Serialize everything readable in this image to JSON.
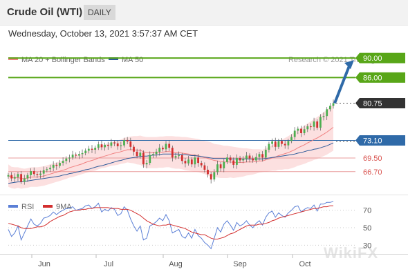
{
  "header": {
    "title": "Crude Oil (WTI)",
    "timeframe": "DAILY"
  },
  "datetime": "Wednesday, October 13, 2021 3:57:37 AM CET",
  "watermark": "WikiFX",
  "colors": {
    "bull": "#4caf50",
    "bear": "#d32f2f",
    "ma20": "#f08080",
    "ma50": "#2e5b9a",
    "bands": "#fbdada",
    "resistance": "#58a618",
    "target": "#2f6aa8",
    "support": "#e99b9b",
    "pivot": "#2f6aa8",
    "last": "#333333",
    "rsi": "#5b7fd6",
    "rsi_ma": "#d32f2f"
  },
  "chart_data": [
    {
      "type": "candlestick",
      "legend": [
        {
          "label": "MA 20 + Bollinger Bands",
          "color": "#f08080"
        },
        {
          "label": "MA 50",
          "color": "#2e5b9a"
        }
      ],
      "credit": "Research © 2021 Trading Central",
      "x_labels": [
        "Jun",
        "Jul",
        "Aug",
        "Sep",
        "Oct"
      ],
      "ylim": [
        62,
        92
      ],
      "levels": [
        {
          "value": 90.0,
          "label": "90.00",
          "role": "resistance"
        },
        {
          "value": 86.0,
          "label": "86.00",
          "role": "resistance"
        },
        {
          "value": 80.75,
          "label": "80.75",
          "role": "last"
        },
        {
          "value": 73.1,
          "label": "73.10",
          "role": "pivot"
        },
        {
          "value": 69.5,
          "label": "69.50",
          "role": "support"
        },
        {
          "value": 66.7,
          "label": "66.70",
          "role": "support"
        }
      ],
      "arrow": {
        "from": 80.75,
        "to": 90.0
      },
      "closes": [
        66.0,
        65.3,
        65.6,
        66.2,
        64.6,
        65.3,
        66.0,
        66.8,
        66.2,
        66.0,
        66.3,
        67.0,
        67.2,
        67.5,
        68.1,
        67.9,
        68.5,
        68.9,
        69.4,
        69.6,
        70.2,
        70.0,
        70.3,
        70.5,
        71.0,
        71.4,
        71.2,
        71.6,
        72.3,
        71.7,
        72.2,
        72.0,
        72.7,
        72.5,
        71.9,
        72.1,
        73.2,
        72.9,
        71.8,
        70.8,
        69.9,
        70.6,
        68.2,
        68.5,
        70.1,
        70.3,
        70.8,
        71.6,
        71.3,
        72.4,
        71.6,
        69.6,
        69.9,
        70.1,
        68.9,
        68.4,
        69.2,
        68.2,
        69.6,
        68.5,
        68.0,
        67.1,
        66.2,
        65.1,
        66.6,
        68.2,
        67.4,
        68.7,
        69.6,
        69.0,
        68.1,
        69.5,
        69.0,
        69.3,
        70.0,
        69.4,
        69.0,
        69.7,
        70.3,
        69.6,
        71.2,
        72.4,
        72.9,
        71.8,
        73.0,
        72.4,
        72.1,
        73.0,
        73.8,
        75.1,
        75.5,
        74.6,
        75.4,
        76.0,
        75.9,
        77.0,
        75.7,
        77.9,
        78.1,
        79.5,
        80.2,
        80.75
      ],
      "ma20": [
        65.9,
        65.5,
        65.4,
        65.5,
        65.3,
        65.3,
        65.4,
        65.6,
        65.6,
        65.6,
        65.7,
        65.8,
        66.0,
        66.2,
        66.4,
        66.6,
        66.8,
        67.0,
        67.2,
        67.5,
        67.7,
        67.9,
        68.1,
        68.3,
        68.6,
        68.8,
        69.0,
        69.2,
        69.5,
        69.7,
        69.9,
        70.1,
        70.3,
        70.5,
        70.6,
        70.8,
        71.0,
        71.2,
        71.2,
        71.2,
        71.1,
        71.1,
        70.8,
        70.6,
        70.6,
        70.6,
        70.6,
        70.7,
        70.7,
        70.8,
        70.8,
        70.7,
        70.6,
        70.6,
        70.5,
        70.4,
        70.3,
        70.2,
        70.1,
        70.0,
        69.8,
        69.6,
        69.4,
        69.2,
        69.0,
        68.9,
        68.8,
        68.7,
        68.7,
        68.7,
        68.6,
        68.6,
        68.6,
        68.6,
        68.7,
        68.7,
        68.7,
        68.8,
        68.9,
        68.9,
        69.1,
        69.3,
        69.5,
        69.7,
        70.0,
        70.2,
        70.4,
        70.6,
        70.9,
        71.2,
        71.6,
        71.9,
        72.2,
        72.6,
        72.9,
        73.3,
        73.6,
        74.0,
        74.4,
        74.8,
        75.3,
        75.8
      ],
      "ma50": [
        64.3,
        64.4,
        64.5,
        64.6,
        64.6,
        64.7,
        64.8,
        64.9,
        65.0,
        65.1,
        65.2,
        65.3,
        65.4,
        65.5,
        65.6,
        65.7,
        65.8,
        66.0,
        66.1,
        66.3,
        66.4,
        66.6,
        66.7,
        66.9,
        67.1,
        67.2,
        67.4,
        67.6,
        67.8,
        67.9,
        68.1,
        68.3,
        68.5,
        68.7,
        68.9,
        69.0,
        69.2,
        69.4,
        69.5,
        69.6,
        69.7,
        69.8,
        69.9,
        69.9,
        70.0,
        70.1,
        70.1,
        70.2,
        70.3,
        70.3,
        70.3,
        70.3,
        70.3,
        70.3,
        70.2,
        70.2,
        70.1,
        70.0,
        70.0,
        69.9,
        69.8,
        69.7,
        69.6,
        69.5,
        69.4,
        69.4,
        69.4,
        69.4,
        69.4,
        69.3,
        69.3,
        69.3,
        69.3,
        69.3,
        69.3,
        69.3,
        69.3,
        69.3,
        69.3,
        69.3,
        69.4,
        69.5,
        69.6,
        69.7,
        69.8,
        69.9,
        70.0,
        70.1,
        70.2,
        70.3,
        70.5,
        70.6,
        70.8,
        71.0,
        71.1,
        71.3,
        71.4,
        71.6,
        71.8,
        72.0,
        72.3,
        72.6
      ],
      "band_halfwidth": [
        2.3,
        2.2,
        2.2,
        2.1,
        2.1,
        2.0,
        2.0,
        2.0,
        2.0,
        2.0,
        2.0,
        2.0,
        2.0,
        2.0,
        2.0,
        2.0,
        2.0,
        2.0,
        2.0,
        2.0,
        2.1,
        2.1,
        2.1,
        2.1,
        2.2,
        2.2,
        2.2,
        2.3,
        2.3,
        2.3,
        2.4,
        2.4,
        2.4,
        2.5,
        2.5,
        2.5,
        2.6,
        2.6,
        2.7,
        2.8,
        2.9,
        3.0,
        3.1,
        3.2,
        3.2,
        3.2,
        3.2,
        3.2,
        3.2,
        3.2,
        3.2,
        3.3,
        3.3,
        3.3,
        3.3,
        3.4,
        3.4,
        3.4,
        3.4,
        3.4,
        3.4,
        3.4,
        3.5,
        3.5,
        3.4,
        3.4,
        3.4,
        3.3,
        3.3,
        3.2,
        3.2,
        3.1,
        3.0,
        2.9,
        2.8,
        2.7,
        2.6,
        2.5,
        2.4,
        2.3,
        2.4,
        2.5,
        2.6,
        2.8,
        2.9,
        3.1,
        3.2,
        3.4,
        3.5,
        3.6,
        3.7,
        3.8,
        3.9,
        4.0,
        4.1,
        4.2,
        4.3,
        4.4,
        4.5,
        4.6,
        4.7,
        4.8
      ]
    },
    {
      "type": "line",
      "legend": [
        {
          "label": "RSI",
          "color": "#5b7fd6"
        },
        {
          "label": "9MA",
          "color": "#d32f2f"
        }
      ],
      "y_ticks": [
        70,
        50,
        30
      ],
      "ylim": [
        20,
        80
      ],
      "rsi": [
        48,
        40,
        44,
        52,
        36,
        44,
        52,
        60,
        54,
        52,
        55,
        61,
        62,
        64,
        68,
        65,
        68,
        70,
        72,
        72,
        74,
        70,
        71,
        72,
        75,
        76,
        72,
        74,
        78,
        68,
        71,
        69,
        73,
        71,
        64,
        66,
        74,
        70,
        60,
        52,
        46,
        52,
        36,
        38,
        52,
        54,
        57,
        61,
        58,
        65,
        58,
        44,
        46,
        48,
        40,
        38,
        44,
        38,
        48,
        41,
        38,
        33,
        30,
        26,
        38,
        50,
        45,
        54,
        58,
        53,
        47,
        56,
        52,
        54,
        58,
        53,
        50,
        55,
        58,
        53,
        62,
        67,
        69,
        62,
        67,
        64,
        62,
        67,
        70,
        74,
        75,
        68,
        71,
        73,
        72,
        76,
        69,
        77,
        77,
        79,
        79,
        80
      ],
      "ma9": [
        55,
        54,
        53,
        52,
        50,
        49,
        49,
        49,
        50,
        51,
        51,
        52,
        54,
        57,
        59,
        61,
        63,
        64,
        66,
        68,
        69,
        70,
        70,
        71,
        71,
        72,
        72,
        73,
        73,
        73,
        73,
        73,
        72,
        72,
        72,
        71,
        71,
        71,
        70,
        68,
        66,
        64,
        61,
        58,
        56,
        54,
        53,
        52,
        53,
        53,
        54,
        53,
        52,
        51,
        50,
        49,
        47,
        45,
        44,
        43,
        42,
        42,
        40,
        38,
        37,
        37,
        38,
        39,
        41,
        43,
        44,
        46,
        48,
        50,
        52,
        53,
        53,
        53,
        54,
        54,
        55,
        56,
        58,
        59,
        61,
        62,
        63,
        64,
        65,
        66,
        67,
        68,
        69,
        70,
        71,
        72,
        72,
        73,
        74,
        74,
        75,
        75
      ]
    }
  ]
}
